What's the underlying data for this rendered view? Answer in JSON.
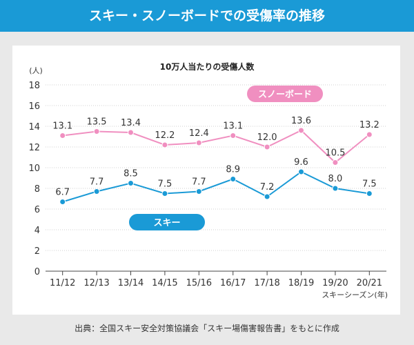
{
  "header": {
    "title": "スキー・スノーボードでの受傷率の推移"
  },
  "footer": {
    "source": "出典：全国スキー安全対策協議会「スキー場傷害報告書」をもとに作成"
  },
  "colors": {
    "header_bg": "#1a9ad6",
    "ski": "#1a9ad6",
    "snowboard": "#f08fc0"
  },
  "chart_data": {
    "type": "line",
    "title": "10万人当たりの受傷人数",
    "ylabel": "(人)",
    "xlabel": "スキーシーズン(年)",
    "ylim": [
      0,
      18
    ],
    "yticks": [
      0,
      2,
      4,
      6,
      8,
      10,
      12,
      14,
      16,
      18
    ],
    "grid": true,
    "categories": [
      "11/12",
      "12/13",
      "13/14",
      "14/15",
      "15/16",
      "16/17",
      "17/18",
      "18/19",
      "19/20",
      "20/21"
    ],
    "series": [
      {
        "name": "スノーボード",
        "values": [
          13.1,
          13.5,
          13.4,
          12.2,
          12.4,
          13.1,
          12.0,
          13.6,
          10.5,
          13.2
        ],
        "labels": [
          "13.1",
          "13.5",
          "13.4",
          "12.2",
          "12.4",
          "13.1",
          "12.0",
          "13.6",
          "10.5",
          "13.2"
        ],
        "color": "#f08fc0"
      },
      {
        "name": "スキー",
        "values": [
          6.7,
          7.7,
          8.5,
          7.5,
          7.7,
          8.9,
          7.2,
          9.6,
          8.0,
          7.5
        ],
        "labels": [
          "6.7",
          "7.7",
          "8.5",
          "7.5",
          "7.7",
          "8.9",
          "7.2",
          "9.6",
          "8.0",
          "7.5"
        ],
        "color": "#1a9ad6"
      }
    ]
  }
}
